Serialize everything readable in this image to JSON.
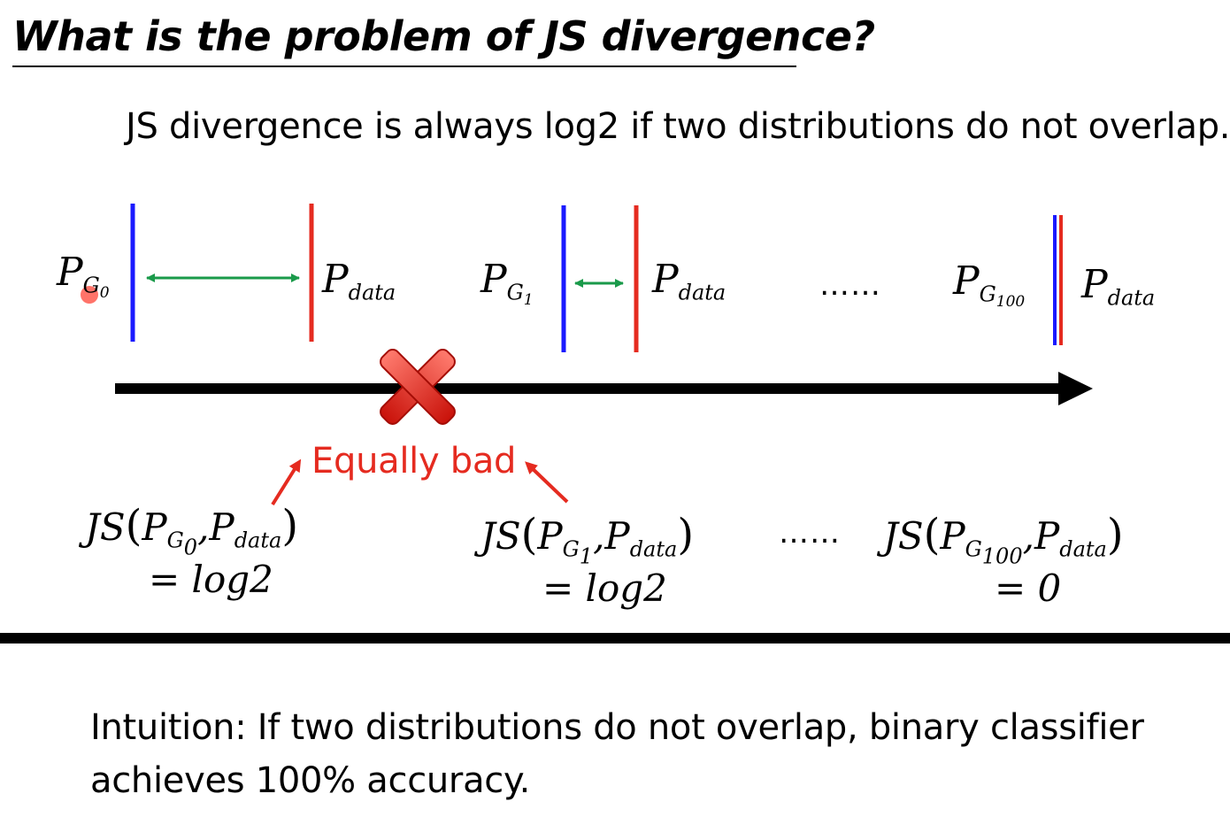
{
  "slide": {
    "title": "What is the problem of JS divergence?",
    "subtitle": "JS divergence is always log2 if two distributions do not overlap."
  },
  "labels": {
    "p": "P",
    "data_sub": "data",
    "g": "G",
    "g0_sub": "0",
    "g1_sub": "1",
    "g100_sub": "100",
    "dots": "……",
    "equally_bad": "Equally bad"
  },
  "formulas": {
    "js": "JS",
    "eq_log2": "= log2",
    "eq_zero": "= 0"
  },
  "intuition": "Intuition: If two distributions do not overlap, binary classifier achieves 100% accuracy.",
  "colors": {
    "p_g": "#1a1aff",
    "p_data": "#e52b20",
    "distance_arrow": "#1a9a4a",
    "timeline": "#000000",
    "cross": "#e52b20"
  },
  "icons": {
    "cross": "x-mark-icon",
    "cursor": "laser-pointer-dot"
  }
}
